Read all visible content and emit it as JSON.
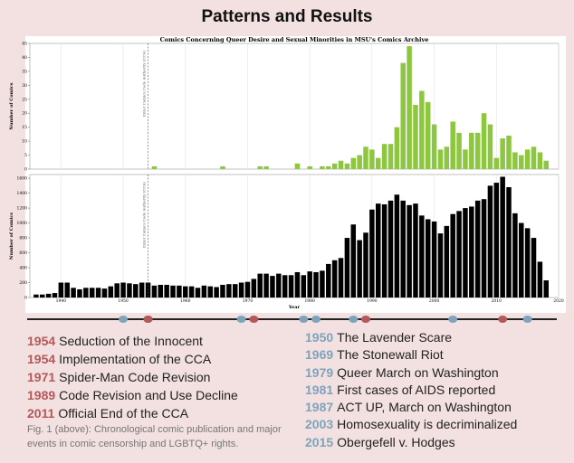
{
  "title": "Patterns and Results",
  "chart_data": [
    {
      "type": "bar",
      "title": "Comics Concerning Queer Desire and Sexual Minorities in MSU's Comics Archive",
      "ylabel": "Number of Comics",
      "color": "#8dc63f",
      "grid": true,
      "xlim": [
        1935,
        2020
      ],
      "xticks": [
        1940,
        1950,
        1960,
        1970,
        1980,
        1990,
        2000,
        2010,
        2020
      ],
      "ylim": [
        0,
        45
      ],
      "yticks": [
        0,
        5,
        10,
        15,
        20,
        25,
        30,
        35,
        40,
        45
      ],
      "annotation": {
        "x": 1954,
        "text": "Enter Comics Code Authority (CCA)"
      },
      "x": [
        1936,
        1937,
        1938,
        1939,
        1940,
        1941,
        1942,
        1943,
        1944,
        1945,
        1946,
        1947,
        1948,
        1949,
        1950,
        1951,
        1952,
        1953,
        1954,
        1955,
        1956,
        1957,
        1958,
        1959,
        1960,
        1961,
        1962,
        1963,
        1964,
        1965,
        1966,
        1967,
        1968,
        1969,
        1970,
        1971,
        1972,
        1973,
        1974,
        1975,
        1976,
        1977,
        1978,
        1979,
        1980,
        1981,
        1982,
        1983,
        1984,
        1985,
        1986,
        1987,
        1988,
        1989,
        1990,
        1991,
        1992,
        1993,
        1994,
        1995,
        1996,
        1997,
        1998,
        1999,
        2000,
        2001,
        2002,
        2003,
        2004,
        2005,
        2006,
        2007,
        2008,
        2009,
        2010,
        2011,
        2012,
        2013,
        2014,
        2015,
        2016,
        2017,
        2018
      ],
      "values": [
        0,
        0,
        0,
        0,
        0,
        0,
        0,
        0,
        0,
        0,
        0,
        0,
        0,
        0,
        0,
        0,
        0,
        0,
        0,
        1,
        0,
        0,
        0,
        0,
        0,
        0,
        0,
        0,
        0,
        0,
        1,
        0,
        0,
        0,
        0,
        0,
        1,
        1,
        0,
        0,
        0,
        0,
        2,
        0,
        1,
        0,
        1,
        1,
        2,
        3,
        2,
        4,
        5,
        8,
        7,
        4,
        9,
        9,
        15,
        38,
        44,
        23,
        28,
        24,
        16,
        7,
        8,
        17,
        13,
        7,
        13,
        13,
        20,
        16,
        4,
        11,
        12,
        6,
        5,
        7,
        8,
        6,
        3
      ]
    },
    {
      "type": "bar",
      "xlabel": "Year",
      "ylabel": "Number of Comics",
      "color": "#000000",
      "grid": true,
      "xlim": [
        1935,
        2020
      ],
      "xticks": [
        1940,
        1950,
        1960,
        1970,
        1980,
        1990,
        2000,
        2010,
        2020
      ],
      "ylim": [
        0,
        1650
      ],
      "yticks": [
        0,
        200,
        400,
        600,
        800,
        1000,
        1200,
        1400,
        1600
      ],
      "annotation": {
        "x": 1954,
        "text": "Enter Comics Code Authority (CCA)"
      },
      "x": [
        1936,
        1937,
        1938,
        1939,
        1940,
        1941,
        1942,
        1943,
        1944,
        1945,
        1946,
        1947,
        1948,
        1949,
        1950,
        1951,
        1952,
        1953,
        1954,
        1955,
        1956,
        1957,
        1958,
        1959,
        1960,
        1961,
        1962,
        1963,
        1964,
        1965,
        1966,
        1967,
        1968,
        1969,
        1970,
        1971,
        1972,
        1973,
        1974,
        1975,
        1976,
        1977,
        1978,
        1979,
        1980,
        1981,
        1982,
        1983,
        1984,
        1985,
        1986,
        1987,
        1988,
        1989,
        1990,
        1991,
        1992,
        1993,
        1994,
        1995,
        1996,
        1997,
        1998,
        1999,
        2000,
        2001,
        2002,
        2003,
        2004,
        2005,
        2006,
        2007,
        2008,
        2009,
        2010,
        2011,
        2012,
        2013,
        2014,
        2015,
        2016,
        2017,
        2018
      ],
      "values": [
        40,
        40,
        50,
        60,
        200,
        200,
        130,
        110,
        130,
        130,
        130,
        120,
        150,
        190,
        200,
        190,
        180,
        200,
        200,
        160,
        170,
        170,
        160,
        160,
        150,
        150,
        130,
        160,
        150,
        140,
        170,
        180,
        180,
        200,
        210,
        250,
        320,
        320,
        290,
        320,
        300,
        300,
        340,
        300,
        350,
        340,
        360,
        450,
        500,
        530,
        800,
        980,
        770,
        870,
        1180,
        1260,
        1250,
        1300,
        1380,
        1300,
        1240,
        1260,
        1100,
        1050,
        1020,
        860,
        960,
        1120,
        1160,
        1200,
        1220,
        1300,
        1320,
        1500,
        1540,
        1620,
        1480,
        1130,
        1000,
        930,
        800,
        480,
        230
      ]
    }
  ],
  "censorship_events": {
    "color": "#b5585a",
    "items": [
      {
        "year": 1954,
        "text": "Seduction of the Innocent"
      },
      {
        "year": 1954,
        "text": "Implementation of the CCA"
      },
      {
        "year": 1971,
        "text": "Spider-Man Code Revision"
      },
      {
        "year": 1989,
        "text": "Code Revision and Use Decline"
      },
      {
        "year": 2011,
        "text": "Official End of the CCA"
      }
    ]
  },
  "lgbtq_events": {
    "color": "#7ea4bb",
    "items": [
      {
        "year": 1950,
        "text": "The Lavender Scare"
      },
      {
        "year": 1969,
        "text": "The Stonewall Riot"
      },
      {
        "year": 1979,
        "text": "Queer March on Washington"
      },
      {
        "year": 1981,
        "text": "First cases of AIDS reported"
      },
      {
        "year": 1987,
        "text": "ACT UP,  March on Washington"
      },
      {
        "year": 2003,
        "text": "Homosexuality is decriminalized"
      },
      {
        "year": 2015,
        "text": "Obergefell v. Hodges"
      }
    ]
  },
  "caption": "Fig. 1 (above): Chronological comic publication and major events in comic censorship and LGBTQ+ rights."
}
